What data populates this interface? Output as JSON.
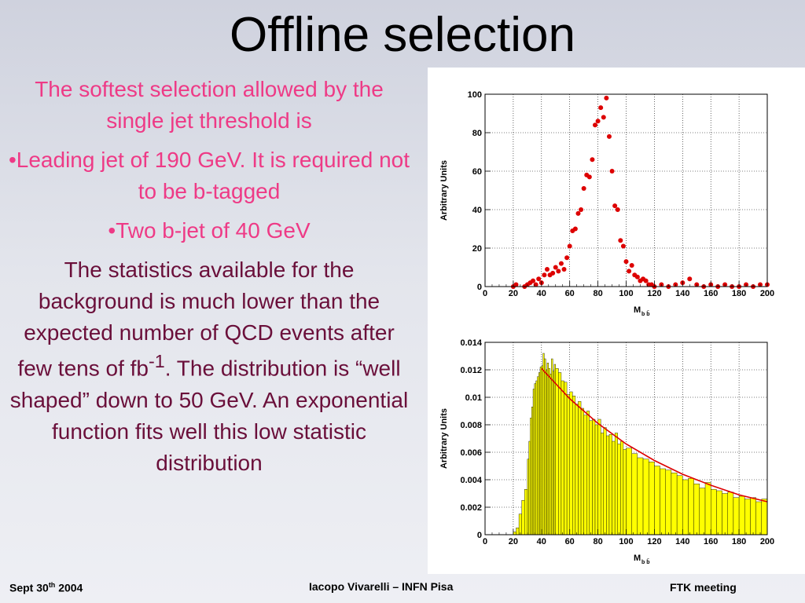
{
  "slide": {
    "title": "Offline selection",
    "intro": "The softest selection allowed by the single jet threshold is",
    "bullet1": "•Leading jet of 190 GeV. It is required not to be b-tagged",
    "bullet2": "•Two b-jet of 40 GeV",
    "body_part1": "The statistics available for the background is much lower than the expected number of QCD events after few tens of fb",
    "body_sup": "-1",
    "body_part2": ". The distribution is “well shaped” down to 50 GeV. An exponential function fits well this low statistic distribution",
    "colors": {
      "intro": "#ee3a86",
      "body": "#6a0f3a"
    }
  },
  "footer": {
    "date_prefix": "Sept 30",
    "date_sup": "th",
    "date_suffix": " 2004",
    "author": "Iacopo Vivarelli – INFN Pisa",
    "meeting": "FTK meeting"
  },
  "chart_data": [
    {
      "type": "scatter",
      "xlabel": "M",
      "xlabel_sub": "b b̄",
      "ylabel": "Arbitrary Units",
      "xlim": [
        0,
        200
      ],
      "ylim": [
        0,
        100
      ],
      "xticks": [
        0,
        20,
        40,
        60,
        80,
        100,
        120,
        140,
        160,
        180,
        200
      ],
      "yticks": [
        0,
        20,
        40,
        60,
        80,
        100
      ],
      "grid": true,
      "marker_color": "#dd0000",
      "x": [
        20,
        22,
        28,
        30,
        32,
        34,
        36,
        38,
        40,
        42,
        44,
        46,
        48,
        50,
        52,
        54,
        56,
        58,
        60,
        62,
        64,
        66,
        68,
        70,
        72,
        74,
        76,
        78,
        80,
        82,
        84,
        86,
        88,
        90,
        92,
        94,
        96,
        98,
        100,
        102,
        104,
        106,
        108,
        110,
        112,
        114,
        116,
        118,
        120,
        125,
        130,
        135,
        140,
        145,
        150,
        155,
        160,
        165,
        170,
        175,
        180,
        185,
        190,
        195,
        200
      ],
      "y": [
        0,
        1,
        0,
        1,
        2,
        3,
        1,
        4,
        2,
        6,
        9,
        6,
        7,
        10,
        8,
        12,
        9,
        15,
        21,
        29,
        30,
        38,
        40,
        51,
        58,
        57,
        66,
        84,
        86,
        93,
        88,
        98,
        78,
        60,
        42,
        40,
        24,
        21,
        13,
        8,
        11,
        6,
        5,
        3,
        4,
        3,
        1,
        1,
        0,
        1,
        0,
        1,
        2,
        4,
        1,
        0,
        1,
        0,
        1,
        0,
        0,
        1,
        0,
        1,
        1
      ]
    },
    {
      "type": "bar",
      "xlabel": "M",
      "xlabel_sub": "b b̄",
      "ylabel": "Arbitrary Units",
      "xlim": [
        0,
        200
      ],
      "ylim": [
        0,
        0.014
      ],
      "xticks": [
        0,
        20,
        40,
        60,
        80,
        100,
        120,
        140,
        160,
        180,
        200
      ],
      "yticks": [
        0,
        0.002,
        0.004,
        0.006,
        0.008,
        0.01,
        0.012,
        0.014
      ],
      "yticklabels": [
        "0",
        "0.002",
        "0.004",
        "0.006",
        "0.008",
        "0.01",
        "0.012",
        "0.014"
      ],
      "grid": true,
      "fill_color": "#ffff00",
      "fit_color": "#dd0000",
      "fit": {
        "function": "exponential",
        "x": [
          40,
          60,
          80,
          100,
          120,
          140,
          160,
          180,
          200
        ],
        "y": [
          0.0121,
          0.0099,
          0.0081,
          0.0066,
          0.0054,
          0.0044,
          0.0036,
          0.0029,
          0.0024
        ]
      },
      "x": [
        0,
        5,
        10,
        15,
        20,
        22,
        24,
        26,
        28,
        30,
        31,
        32,
        33,
        34,
        35,
        36,
        37,
        38,
        39,
        40,
        41,
        42,
        43,
        44,
        45,
        46,
        47,
        48,
        49,
        50,
        52,
        54,
        56,
        58,
        60,
        62,
        64,
        66,
        68,
        70,
        72,
        74,
        76,
        78,
        80,
        82,
        84,
        86,
        88,
        90,
        92,
        94,
        96,
        98,
        100,
        104,
        108,
        112,
        116,
        120,
        124,
        128,
        132,
        136,
        140,
        144,
        148,
        152,
        156,
        160,
        164,
        168,
        172,
        176,
        180,
        184,
        188,
        192,
        196,
        200
      ],
      "values": [
        0,
        0,
        0,
        0,
        0.0002,
        0.0005,
        0.0015,
        0.0025,
        0.0033,
        0.0055,
        0.0068,
        0.0085,
        0.0093,
        0.0106,
        0.011,
        0.0112,
        0.0115,
        0.0118,
        0.0122,
        0.0123,
        0.0132,
        0.0128,
        0.012,
        0.0125,
        0.0121,
        0.0117,
        0.0128,
        0.0119,
        0.0124,
        0.0121,
        0.0118,
        0.0112,
        0.0111,
        0.0102,
        0.0104,
        0.0101,
        0.0095,
        0.0097,
        0.0092,
        0.0087,
        0.009,
        0.0083,
        0.0084,
        0.008,
        0.0084,
        0.0074,
        0.0078,
        0.0072,
        0.0073,
        0.0068,
        0.0074,
        0.0066,
        0.0068,
        0.0062,
        0.0063,
        0.0059,
        0.0056,
        0.0055,
        0.0053,
        0.005,
        0.0048,
        0.0047,
        0.0045,
        0.0043,
        0.004,
        0.0041,
        0.0037,
        0.0034,
        0.0038,
        0.0033,
        0.0032,
        0.003,
        0.0031,
        0.0027,
        0.0028,
        0.0026,
        0.0027,
        0.0024,
        0.0026,
        0.0023
      ]
    }
  ]
}
